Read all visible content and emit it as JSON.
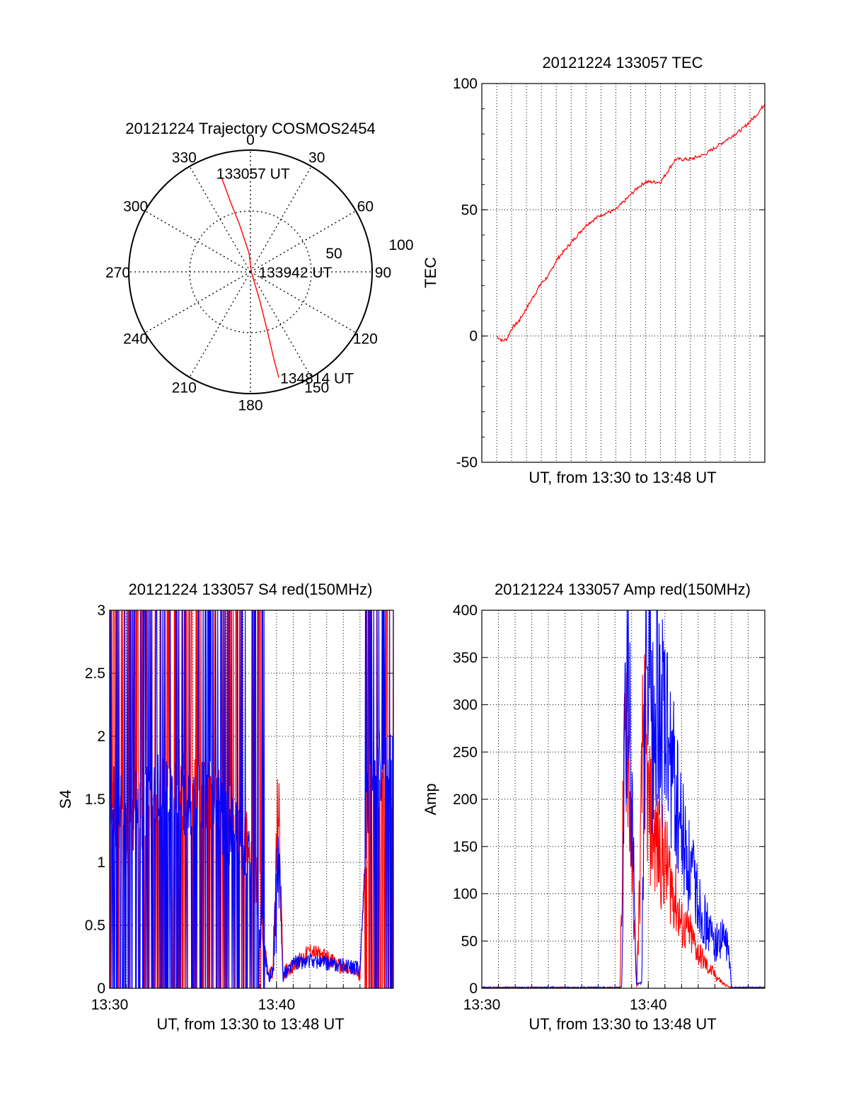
{
  "colors": {
    "red": "#ff0000",
    "blue": "#0000ff",
    "axis": "#000000",
    "grid": "#000000"
  },
  "chart_data": [
    {
      "id": "polar",
      "type": "polar-trajectory",
      "title": "20121224 Trajectory COSMOS2454",
      "angle_labels": [
        "0",
        "30",
        "60",
        "90",
        "120",
        "150",
        "180",
        "210",
        "240",
        "270",
        "300",
        "330"
      ],
      "angles_deg": [
        0,
        30,
        60,
        90,
        120,
        150,
        180,
        210,
        240,
        270,
        300,
        330
      ],
      "radius_labels": [
        "50",
        "100"
      ],
      "radius_range": [
        0,
        100
      ],
      "trajectory": [
        {
          "azimuth": 343,
          "r": 80
        },
        {
          "azimuth": 344,
          "r": 60
        },
        {
          "azimuth": 347,
          "r": 40
        },
        {
          "azimuth": 356,
          "r": 15
        },
        {
          "azimuth": 120,
          "r": 1
        },
        {
          "azimuth": 162,
          "r": 25
        },
        {
          "azimuth": 164,
          "r": 50
        },
        {
          "azimuth": 165,
          "r": 75
        },
        {
          "azimuth": 165,
          "r": 90
        }
      ],
      "annotations": [
        {
          "text": "133057 UT",
          "azimuth": 343,
          "r": 80
        },
        {
          "text": "133942 UT",
          "azimuth": 90,
          "r": 2
        },
        {
          "text": "134814 UT",
          "azimuth": 165,
          "r": 90
        }
      ]
    },
    {
      "id": "tec",
      "type": "line",
      "title": "20121224 133057 TEC",
      "xlabel": "UT, from 13:30 to 13:48 UT",
      "ylabel": "TEC",
      "xlim": [
        0,
        19
      ],
      "ylim": [
        -50,
        100
      ],
      "y_ticks": [
        -50,
        0,
        50,
        100
      ],
      "y_tick_labels": [
        "-50",
        "0",
        "50",
        "100"
      ],
      "x_ticks": [],
      "grid": "dotted",
      "series": [
        {
          "name": "TEC",
          "color": "red",
          "x": [
            1.0,
            1.2,
            1.4,
            1.7,
            2.0,
            2.5,
            3.0,
            3.5,
            4.0,
            4.5,
            5.0,
            6.0,
            7.0,
            8.0,
            9.0,
            10.0,
            10.5,
            11.0,
            12.0,
            13.0,
            14.0,
            15.0,
            16.0,
            17.0,
            17.5,
            18.0,
            18.5,
            19.0
          ],
          "y": [
            0,
            -1,
            -2,
            -1,
            3,
            6,
            11,
            16,
            21,
            24,
            30,
            37,
            44,
            48,
            50,
            56,
            59,
            61,
            61,
            70,
            70,
            72,
            76,
            80,
            82,
            85,
            88,
            92
          ]
        }
      ]
    },
    {
      "id": "s4",
      "type": "line",
      "title": "20121224 133057 S4 red(150MHz)",
      "xlabel": "UT, from 13:30 to 13:48 UT",
      "ylabel": "S4",
      "xlim": [
        0,
        17
      ],
      "ylim": [
        0,
        3
      ],
      "y_ticks": [
        0,
        0.5,
        1,
        1.5,
        2,
        2.5,
        3
      ],
      "y_tick_labels": [
        "0",
        "0.5",
        "1",
        "1.5",
        "2",
        "2.5",
        "3"
      ],
      "x_ticks": [
        0,
        10
      ],
      "x_tick_labels": [
        "13:30",
        "13:40"
      ],
      "grid": "dotted",
      "series": [
        {
          "name": "red(150MHz)",
          "color": "red",
          "x": [
            0.0,
            1.0,
            2.0,
            3.0,
            4.0,
            5.0,
            6.0,
            7.0,
            8.0,
            8.5,
            9.0,
            9.5,
            9.8,
            10.1,
            10.4,
            11.0,
            12.0,
            13.0,
            14.0,
            15.0,
            15.5,
            16.0,
            17.0
          ],
          "y": [
            1.45,
            1.3,
            1.4,
            1.5,
            1.7,
            1.6,
            1.5,
            1.4,
            1.2,
            1.0,
            0.7,
            0.1,
            0.15,
            1.5,
            0.12,
            0.18,
            0.3,
            0.25,
            0.15,
            0.12,
            1.6,
            1.7,
            1.6
          ]
        },
        {
          "name": "blue",
          "color": "blue",
          "x": [
            0.0,
            1.0,
            2.0,
            3.0,
            4.0,
            5.0,
            6.0,
            7.0,
            8.0,
            8.5,
            9.0,
            9.5,
            9.8,
            10.1,
            10.4,
            11.0,
            12.0,
            13.0,
            14.0,
            15.0,
            15.5,
            16.0,
            17.0
          ],
          "y": [
            1.5,
            1.4,
            1.5,
            1.6,
            1.5,
            1.5,
            1.55,
            1.3,
            1.1,
            0.95,
            0.6,
            0.08,
            0.12,
            1.0,
            0.1,
            0.2,
            0.22,
            0.2,
            0.18,
            0.15,
            1.6,
            1.8,
            1.7
          ]
        }
      ]
    },
    {
      "id": "amp",
      "type": "line",
      "title": "20121224 133057 Amp red(150MHz)",
      "xlabel": "UT, from 13:30 to 13:48 UT",
      "ylabel": "Amp",
      "xlim": [
        0,
        17
      ],
      "ylim": [
        0,
        400
      ],
      "y_ticks": [
        0,
        50,
        100,
        150,
        200,
        250,
        300,
        350,
        400
      ],
      "y_tick_labels": [
        "0",
        "50",
        "100",
        "150",
        "200",
        "250",
        "300",
        "350",
        "400"
      ],
      "x_ticks": [
        0,
        10
      ],
      "x_tick_labels": [
        "13:30",
        "13:40"
      ],
      "grid": "dotted",
      "series": [
        {
          "name": "red(150MHz)",
          "color": "red",
          "x": [
            0,
            8.3,
            8.5,
            8.7,
            9.0,
            9.3,
            9.5,
            9.7,
            10.0,
            10.5,
            11.0,
            11.5,
            12.0,
            12.5,
            13.0,
            13.5,
            14.0,
            14.5,
            15.0,
            17.0
          ],
          "y": [
            0,
            0,
            200,
            320,
            150,
            0,
            120,
            300,
            200,
            160,
            140,
            110,
            70,
            60,
            40,
            25,
            15,
            5,
            0,
            0
          ]
        },
        {
          "name": "blue",
          "color": "blue",
          "x": [
            0,
            8.4,
            8.6,
            8.8,
            9.0,
            9.3,
            9.6,
            9.8,
            10.0,
            10.3,
            10.6,
            11.0,
            11.5,
            12.0,
            12.5,
            13.0,
            13.5,
            14.0,
            14.5,
            14.8,
            15.0,
            17.0
          ],
          "y": [
            0,
            0,
            260,
            360,
            200,
            5,
            5,
            300,
            340,
            280,
            330,
            280,
            230,
            170,
            130,
            100,
            70,
            50,
            55,
            45,
            0,
            0
          ]
        }
      ]
    }
  ]
}
